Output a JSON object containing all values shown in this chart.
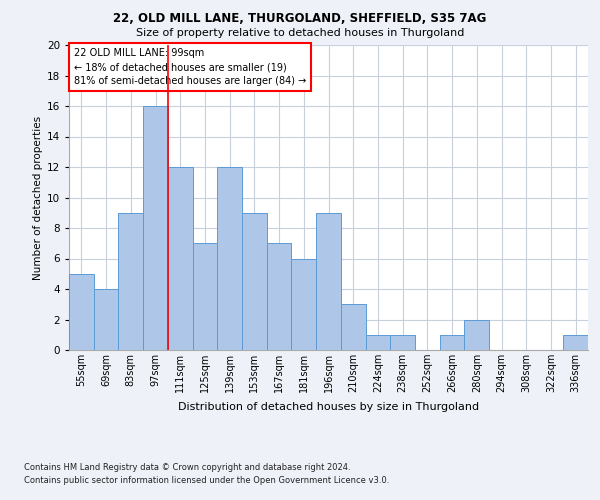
{
  "title_line1": "22, OLD MILL LANE, THURGOLAND, SHEFFIELD, S35 7AG",
  "title_line2": "Size of property relative to detached houses in Thurgoland",
  "xlabel": "Distribution of detached houses by size in Thurgoland",
  "ylabel": "Number of detached properties",
  "categories": [
    "55sqm",
    "69sqm",
    "83sqm",
    "97sqm",
    "111sqm",
    "125sqm",
    "139sqm",
    "153sqm",
    "167sqm",
    "181sqm",
    "196sqm",
    "210sqm",
    "224sqm",
    "238sqm",
    "252sqm",
    "266sqm",
    "280sqm",
    "294sqm",
    "308sqm",
    "322sqm",
    "336sqm"
  ],
  "values": [
    5,
    4,
    9,
    16,
    12,
    7,
    12,
    9,
    7,
    6,
    9,
    3,
    1,
    1,
    0,
    1,
    2,
    0,
    0,
    0,
    1
  ],
  "bar_color": "#aec6e8",
  "bar_edgecolor": "#5b9bd5",
  "red_line_index": 3.5,
  "annotation_text_line1": "22 OLD MILL LANE: 99sqm",
  "annotation_text_line2": "← 18% of detached houses are smaller (19)",
  "annotation_text_line3": "81% of semi-detached houses are larger (84) →",
  "annotation_box_color": "white",
  "annotation_box_edgecolor": "red",
  "footer_line1": "Contains HM Land Registry data © Crown copyright and database right 2024.",
  "footer_line2": "Contains public sector information licensed under the Open Government Licence v3.0.",
  "ylim": [
    0,
    20
  ],
  "yticks": [
    0,
    2,
    4,
    6,
    8,
    10,
    12,
    14,
    16,
    18,
    20
  ],
  "background_color": "#eef2f8",
  "plot_background": "white",
  "grid_color": "#c8d0dc"
}
